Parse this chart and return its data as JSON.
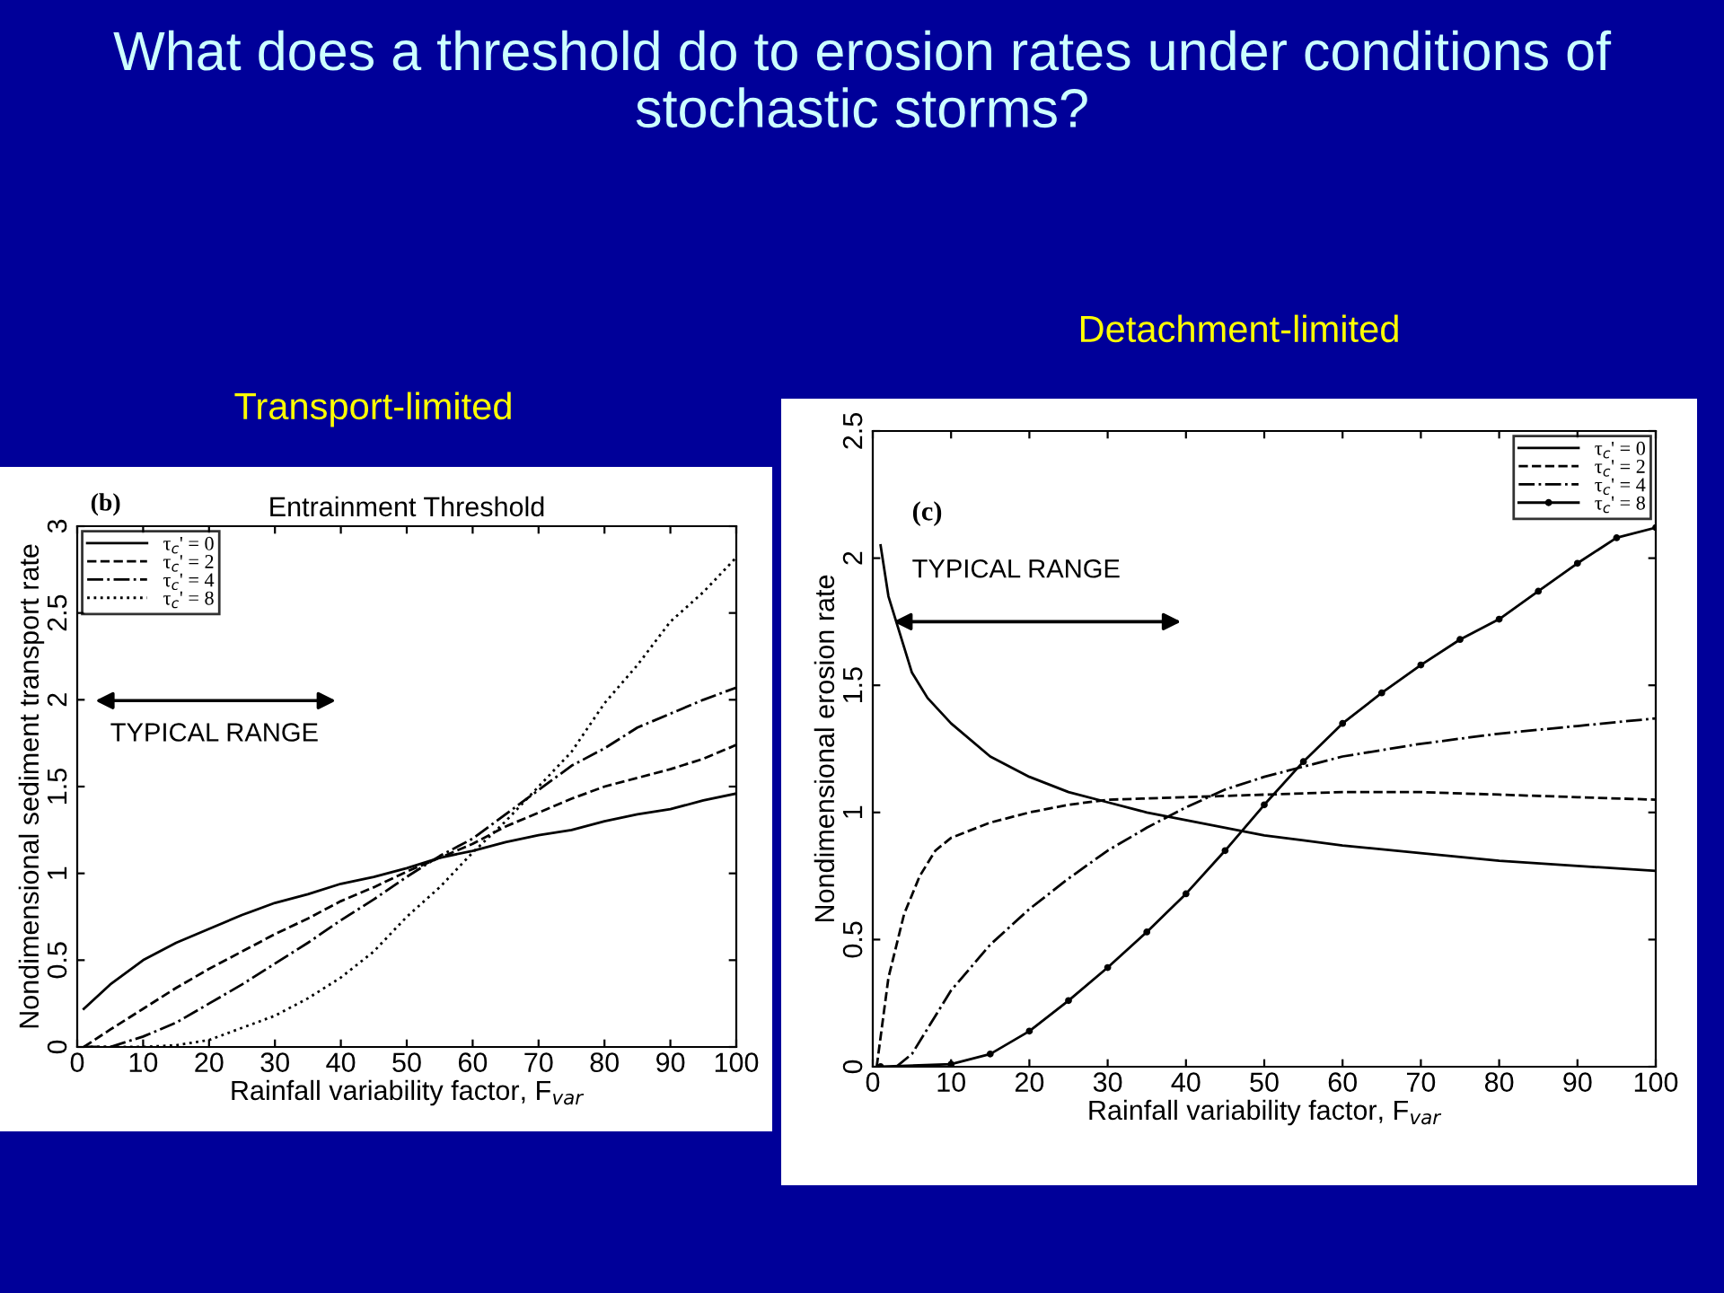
{
  "chart_data": [
    {
      "type": "line",
      "title": "Transport-limited",
      "subtitle": "Entrainment Threshold",
      "xlabel": "Rainfall variability factor, F$_{var}$",
      "ylabel": "Nondimensional sediment transport rate",
      "annotations": [
        "(b)",
        "TYPICAL RANGE",
        "What does a threshold do to erosion rates under conditions of stochastic storms?"
      ],
      "xlim": [
        0,
        100
      ],
      "ylim": [
        0,
        3
      ],
      "xticks": [
        0,
        10,
        20,
        30,
        40,
        50,
        60,
        70,
        80,
        90,
        100
      ],
      "yticks": [
        0,
        0.5,
        1,
        1.5,
        2,
        2.5,
        3
      ],
      "grid": false,
      "legend": "top left",
      "series": [
        {
          "name": "τ$_{c}$' = 0",
          "color": "#000000",
          "line_style": "solid",
          "x": [
            1,
            5,
            10,
            15,
            20,
            25,
            30,
            35,
            40,
            45,
            50,
            55,
            60,
            65,
            70,
            75,
            80,
            85,
            90,
            95,
            100
          ],
          "values": [
            0.22,
            0.36,
            0.5,
            0.6,
            0.68,
            0.76,
            0.83,
            0.88,
            0.94,
            0.98,
            1.03,
            1.09,
            1.13,
            1.18,
            1.22,
            1.25,
            1.3,
            1.34,
            1.37,
            1.42,
            1.46
          ]
        },
        {
          "name": "τ$_{c}$' = 2",
          "color": "#000000",
          "line_style": "dashed",
          "x": [
            1,
            5,
            10,
            15,
            20,
            25,
            30,
            35,
            40,
            45,
            50,
            55,
            60,
            65,
            70,
            75,
            80,
            85,
            90,
            95,
            100
          ],
          "values": [
            0.0,
            0.1,
            0.22,
            0.34,
            0.45,
            0.55,
            0.65,
            0.74,
            0.84,
            0.92,
            1.01,
            1.09,
            1.17,
            1.27,
            1.35,
            1.43,
            1.5,
            1.55,
            1.6,
            1.66,
            1.74
          ]
        },
        {
          "name": "τ$_{c}$' = 4",
          "color": "#000000",
          "line_style": "dashdot",
          "x": [
            1,
            5,
            10,
            15,
            20,
            25,
            30,
            35,
            40,
            45,
            50,
            55,
            60,
            65,
            70,
            75,
            80,
            85,
            90,
            95,
            100
          ],
          "values": [
            0.0,
            0.0,
            0.06,
            0.14,
            0.25,
            0.36,
            0.48,
            0.6,
            0.73,
            0.85,
            0.98,
            1.1,
            1.2,
            1.34,
            1.48,
            1.62,
            1.72,
            1.84,
            1.92,
            2.0,
            2.07
          ]
        },
        {
          "name": "τ$_{c}$' = 8",
          "color": "#000000",
          "line_style": "dotted",
          "x": [
            1,
            10,
            15,
            20,
            25,
            30,
            35,
            40,
            45,
            50,
            55,
            60,
            65,
            70,
            75,
            80,
            85,
            90,
            95,
            100
          ],
          "values": [
            0.0,
            0.0,
            0.01,
            0.04,
            0.11,
            0.18,
            0.28,
            0.4,
            0.55,
            0.75,
            0.92,
            1.12,
            1.3,
            1.5,
            1.7,
            1.98,
            2.2,
            2.45,
            2.62,
            2.82
          ]
        }
      ]
    },
    {
      "type": "line",
      "title": "Detachment-limited",
      "xlabel": "Rainfall variability factor, F$_{var}$",
      "ylabel": "Nondimensional erosion rate",
      "annotations": [
        "(c)",
        "TYPICAL RANGE"
      ],
      "xlim": [
        0,
        100
      ],
      "ylim": [
        0,
        2.5
      ],
      "xticks": [
        0,
        10,
        20,
        30,
        40,
        50,
        60,
        70,
        80,
        90,
        100
      ],
      "yticks": [
        0,
        0.5,
        1,
        1.5,
        2,
        2.5
      ],
      "grid": false,
      "legend": "top right",
      "series": [
        {
          "name": "τ$_{c}$' = 0",
          "color": "#000000",
          "line_style": "solid",
          "x": [
            1,
            2,
            5,
            7,
            10,
            15,
            20,
            25,
            30,
            35,
            40,
            45,
            50,
            55,
            60,
            70,
            80,
            90,
            100
          ],
          "values": [
            2.05,
            1.85,
            1.55,
            1.45,
            1.35,
            1.22,
            1.14,
            1.08,
            1.04,
            1.0,
            0.97,
            0.94,
            0.91,
            0.89,
            0.87,
            0.84,
            0.81,
            0.79,
            0.77
          ]
        },
        {
          "name": "τ$_{c}$' = 2",
          "color": "#000000",
          "line_style": "dashed",
          "x": [
            0.5,
            2,
            4,
            6,
            8,
            10,
            15,
            20,
            25,
            30,
            40,
            50,
            60,
            70,
            80,
            90,
            100
          ],
          "values": [
            0.0,
            0.35,
            0.6,
            0.75,
            0.85,
            0.9,
            0.96,
            1.0,
            1.03,
            1.05,
            1.06,
            1.07,
            1.08,
            1.08,
            1.07,
            1.06,
            1.05
          ]
        },
        {
          "name": "τ$_{c}$' = 4",
          "color": "#000000",
          "line_style": "dashdot",
          "x": [
            3,
            5,
            10,
            15,
            20,
            25,
            30,
            35,
            40,
            45,
            50,
            55,
            60,
            70,
            80,
            90,
            100
          ],
          "values": [
            0.0,
            0.05,
            0.3,
            0.48,
            0.62,
            0.74,
            0.85,
            0.94,
            1.02,
            1.09,
            1.14,
            1.18,
            1.22,
            1.27,
            1.31,
            1.34,
            1.37
          ]
        },
        {
          "name": "τ$_{c}$' = 8",
          "color": "#000000",
          "line_style": "solid",
          "marker": "circle",
          "x": [
            1,
            10,
            15,
            20,
            25,
            30,
            35,
            40,
            45,
            50,
            55,
            60,
            65,
            70,
            75,
            80,
            85,
            90,
            95,
            100
          ],
          "values": [
            0.0,
            0.01,
            0.05,
            0.14,
            0.26,
            0.39,
            0.53,
            0.68,
            0.85,
            1.03,
            1.2,
            1.35,
            1.47,
            1.58,
            1.68,
            1.76,
            1.87,
            1.98,
            2.08,
            2.12
          ]
        }
      ]
    }
  ]
}
